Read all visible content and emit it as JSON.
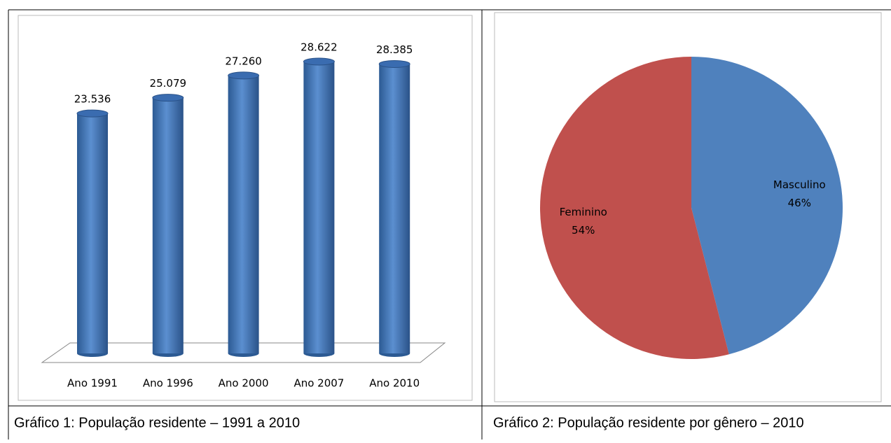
{
  "chart_data": [
    {
      "type": "bar",
      "categories": [
        "Ano 1991",
        "Ano 1996",
        "Ano 2000",
        "Ano 2007",
        "Ano 2010"
      ],
      "values": [
        23536,
        25079,
        27260,
        28622,
        28385
      ],
      "value_labels": [
        "23.536",
        "25.079",
        "27.260",
        "28.622",
        "28.385"
      ],
      "color": "#4f81bd",
      "caption": "Gráfico 1: População residente – 1991 a 2010"
    },
    {
      "type": "pie",
      "categories": [
        "Masculino",
        "Feminino"
      ],
      "values": [
        46,
        54
      ],
      "value_labels": [
        "46%",
        "54%"
      ],
      "colors": [
        "#4f81bd",
        "#c0504d"
      ],
      "caption": "Gráfico 2: População residente por gênero –  2010"
    }
  ]
}
